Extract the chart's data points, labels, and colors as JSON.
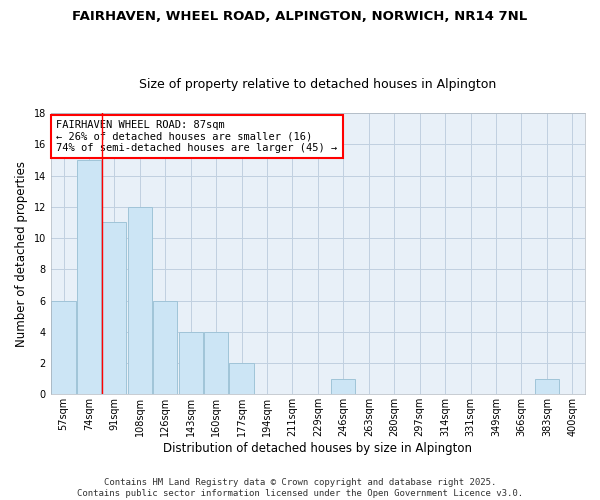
{
  "title_line1": "FAIRHAVEN, WHEEL ROAD, ALPINGTON, NORWICH, NR14 7NL",
  "title_line2": "Size of property relative to detached houses in Alpington",
  "xlabel": "Distribution of detached houses by size in Alpington",
  "ylabel": "Number of detached properties",
  "categories": [
    "57sqm",
    "74sqm",
    "91sqm",
    "108sqm",
    "126sqm",
    "143sqm",
    "160sqm",
    "177sqm",
    "194sqm",
    "211sqm",
    "229sqm",
    "246sqm",
    "263sqm",
    "280sqm",
    "297sqm",
    "314sqm",
    "331sqm",
    "349sqm",
    "366sqm",
    "383sqm",
    "400sqm"
  ],
  "values": [
    6,
    15,
    11,
    12,
    6,
    4,
    4,
    2,
    0,
    0,
    0,
    1,
    0,
    0,
    0,
    0,
    0,
    0,
    0,
    1,
    0
  ],
  "bar_color": "#cce5f5",
  "bar_edge_color": "#a0c4d8",
  "annotation_text_line1": "FAIRHAVEN WHEEL ROAD: 87sqm",
  "annotation_text_line2": "← 26% of detached houses are smaller (16)",
  "annotation_text_line3": "74% of semi-detached houses are larger (45) →",
  "red_line_x": 1.5,
  "ylim": [
    0,
    18
  ],
  "yticks": [
    0,
    2,
    4,
    6,
    8,
    10,
    12,
    14,
    16,
    18
  ],
  "footer_line1": "Contains HM Land Registry data © Crown copyright and database right 2025.",
  "footer_line2": "Contains public sector information licensed under the Open Government Licence v3.0.",
  "background_color": "#ffffff",
  "plot_bg_color": "#e8f0f8",
  "grid_color": "#c0d0e0",
  "title1_fontsize": 9.5,
  "title2_fontsize": 9,
  "axis_label_fontsize": 8.5,
  "tick_fontsize": 7,
  "annotation_fontsize": 7.5,
  "footer_fontsize": 6.5
}
